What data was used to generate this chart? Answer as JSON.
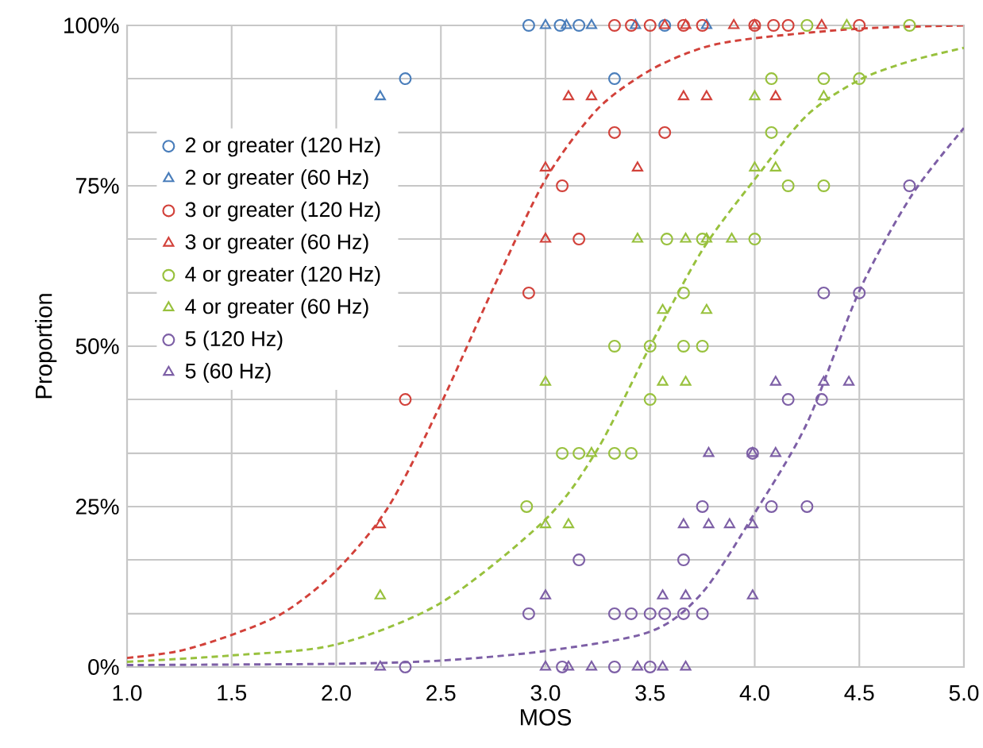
{
  "chart_data": {
    "type": "scatter",
    "xlabel": "MOS",
    "ylabel": "Proportion",
    "xlim": [
      1,
      5
    ],
    "ylim": [
      0,
      100
    ],
    "xticks": [
      {
        "value": 1,
        "label": "1.0"
      },
      {
        "value": 1.5,
        "label": "1.5"
      },
      {
        "value": 2,
        "label": "2.0"
      },
      {
        "value": 2.5,
        "label": "2.5"
      },
      {
        "value": 3,
        "label": "3.0"
      },
      {
        "value": 3.5,
        "label": "3.5"
      },
      {
        "value": 4,
        "label": "4.0"
      },
      {
        "value": 4.5,
        "label": "4.5"
      },
      {
        "value": 5,
        "label": "5.0"
      }
    ],
    "yticks": [
      {
        "value": 0,
        "label": "0%"
      },
      {
        "value": 8.3,
        "label": null
      },
      {
        "value": 16.7,
        "label": null
      },
      {
        "value": 25,
        "label": "25%"
      },
      {
        "value": 33.3,
        "label": null
      },
      {
        "value": 41.7,
        "label": null
      },
      {
        "value": 50,
        "label": "50%"
      },
      {
        "value": 58.3,
        "label": null
      },
      {
        "value": 66.7,
        "label": null
      },
      {
        "value": 75,
        "label": "75%"
      },
      {
        "value": 83.3,
        "label": null
      },
      {
        "value": 91.7,
        "label": null
      },
      {
        "value": 100,
        "label": "100%"
      }
    ],
    "grid": true,
    "legend": "top left",
    "series": [
      {
        "name": "2 or greater (120 Hz)",
        "color": "#4a7ebb",
        "marker": "circle",
        "x": [
          2.33,
          2.92,
          3.07,
          3.16,
          3.33,
          3.57
        ],
        "values": [
          91.7,
          100,
          100,
          100,
          91.7,
          100
        ]
      },
      {
        "name": "2 or greater (60 Hz)",
        "color": "#4a7ebb",
        "marker": "triangle",
        "x": [
          2.21,
          3.0,
          3.1,
          3.22,
          3.43,
          3.77
        ],
        "values": [
          88.9,
          100,
          100,
          100,
          100,
          100
        ]
      },
      {
        "name": "3 or greater (120 Hz)",
        "color": "#d2413a",
        "marker": "circle",
        "x": [
          3.33,
          3.41,
          3.5,
          3.66,
          3.75,
          4.0,
          4.09,
          4.16,
          4.5,
          3.33,
          3.57,
          3.08,
          2.92,
          3.16,
          2.33
        ],
        "values": [
          100,
          100,
          100,
          100,
          100,
          100,
          100,
          100,
          100,
          83.3,
          83.3,
          75,
          58.3,
          66.7,
          41.7
        ]
      },
      {
        "name": "3 or greater (60 Hz)",
        "color": "#d2413a",
        "marker": "triangle",
        "x": [
          2.21,
          3.11,
          3.22,
          3.66,
          3.77,
          4.1,
          3.0,
          3.44,
          3.0,
          3.57,
          3.67,
          3.9,
          4.0,
          4.32
        ],
        "values": [
          22.2,
          88.9,
          88.9,
          88.9,
          88.9,
          88.9,
          77.8,
          77.8,
          66.7,
          100,
          100,
          100,
          100,
          100
        ]
      },
      {
        "name": "4 or greater (120 Hz)",
        "color": "#98c13d",
        "marker": "circle",
        "x": [
          4.25,
          4.74,
          4.08,
          4.33,
          4.5,
          4.08,
          4.16,
          4.33,
          3.58,
          3.75,
          4.0,
          3.66,
          3.33,
          3.5,
          3.66,
          3.75,
          3.5,
          3.08,
          3.16,
          3.33,
          3.41,
          2.91
        ],
        "values": [
          100,
          100,
          91.7,
          91.7,
          91.7,
          83.3,
          75,
          75,
          66.7,
          66.7,
          66.7,
          58.3,
          50,
          50,
          50,
          50,
          41.7,
          33.3,
          33.3,
          33.3,
          33.3,
          25
        ]
      },
      {
        "name": "4 or greater (60 Hz)",
        "color": "#98c13d",
        "marker": "triangle",
        "x": [
          4.44,
          4.0,
          4.33,
          4.0,
          4.1,
          3.44,
          3.67,
          3.77,
          3.89,
          3.56,
          3.77,
          3.0,
          3.56,
          3.67,
          3.22,
          3.0,
          3.11,
          2.21
        ],
        "values": [
          100,
          88.9,
          88.9,
          77.8,
          77.8,
          66.7,
          66.7,
          66.7,
          66.7,
          55.6,
          55.6,
          44.4,
          44.4,
          44.4,
          33.3,
          22.2,
          22.2,
          11.1
        ]
      },
      {
        "name": "5 (120 Hz)",
        "color": "#7d5fa6",
        "marker": "circle",
        "x": [
          4.74,
          4.33,
          4.5,
          4.16,
          4.32,
          3.99,
          3.75,
          4.08,
          4.25,
          3.16,
          3.66,
          2.92,
          3.33,
          3.41,
          3.5,
          3.57,
          3.66,
          3.75,
          3.08,
          3.33,
          3.5,
          2.33
        ],
        "values": [
          75,
          58.3,
          58.3,
          41.7,
          41.7,
          33.3,
          25,
          25,
          25,
          16.7,
          16.7,
          8.3,
          8.3,
          8.3,
          8.3,
          8.3,
          8.3,
          8.3,
          0,
          0,
          0,
          0
        ]
      },
      {
        "name": "5 (60 Hz)",
        "color": "#7d5fa6",
        "marker": "triangle",
        "x": [
          4.1,
          4.33,
          4.45,
          3.78,
          3.99,
          4.1,
          3.66,
          3.78,
          3.88,
          3.99,
          3.0,
          3.56,
          3.67,
          3.99,
          3.0,
          3.11,
          3.22,
          3.44,
          3.56,
          3.67,
          2.21
        ],
        "values": [
          44.4,
          44.4,
          44.4,
          33.3,
          33.3,
          33.3,
          22.2,
          22.2,
          22.2,
          22.2,
          11.1,
          11.1,
          11.1,
          11.1,
          0,
          0,
          0,
          0,
          0,
          0,
          0
        ]
      },
      {
        "type": "line",
        "color": "#d2413a",
        "marker": "none",
        "line_style": "dashed",
        "x": [
          1.0,
          1.25,
          1.5,
          1.75,
          2.0,
          2.25,
          2.5,
          2.75,
          3.0,
          3.25,
          3.5,
          3.75,
          4.0,
          4.5,
          5.0
        ],
        "values": [
          1.4,
          2.5,
          5,
          8.5,
          15,
          25,
          41,
          59,
          76,
          87,
          93,
          96.5,
          98,
          99.5,
          100
        ]
      },
      {
        "type": "line",
        "color": "#98c13d",
        "marker": "none",
        "line_style": "dashed",
        "x": [
          1.0,
          1.5,
          2.0,
          2.5,
          3.0,
          3.25,
          3.5,
          3.75,
          4.0,
          4.25,
          4.5,
          4.75,
          5.0
        ],
        "values": [
          0.8,
          1.8,
          3.5,
          10,
          23,
          34,
          50,
          65,
          76,
          86,
          91.5,
          94.5,
          96.5
        ]
      },
      {
        "type": "line",
        "color": "#7d5fa6",
        "marker": "none",
        "line_style": "dashed",
        "x": [
          1.0,
          2.0,
          2.5,
          3.0,
          3.5,
          3.75,
          4.0,
          4.25,
          4.5,
          4.75,
          5.0
        ],
        "values": [
          0.3,
          0.5,
          1,
          2.5,
          5.5,
          11.6,
          24,
          38,
          58.6,
          73.5,
          84
        ]
      }
    ]
  }
}
